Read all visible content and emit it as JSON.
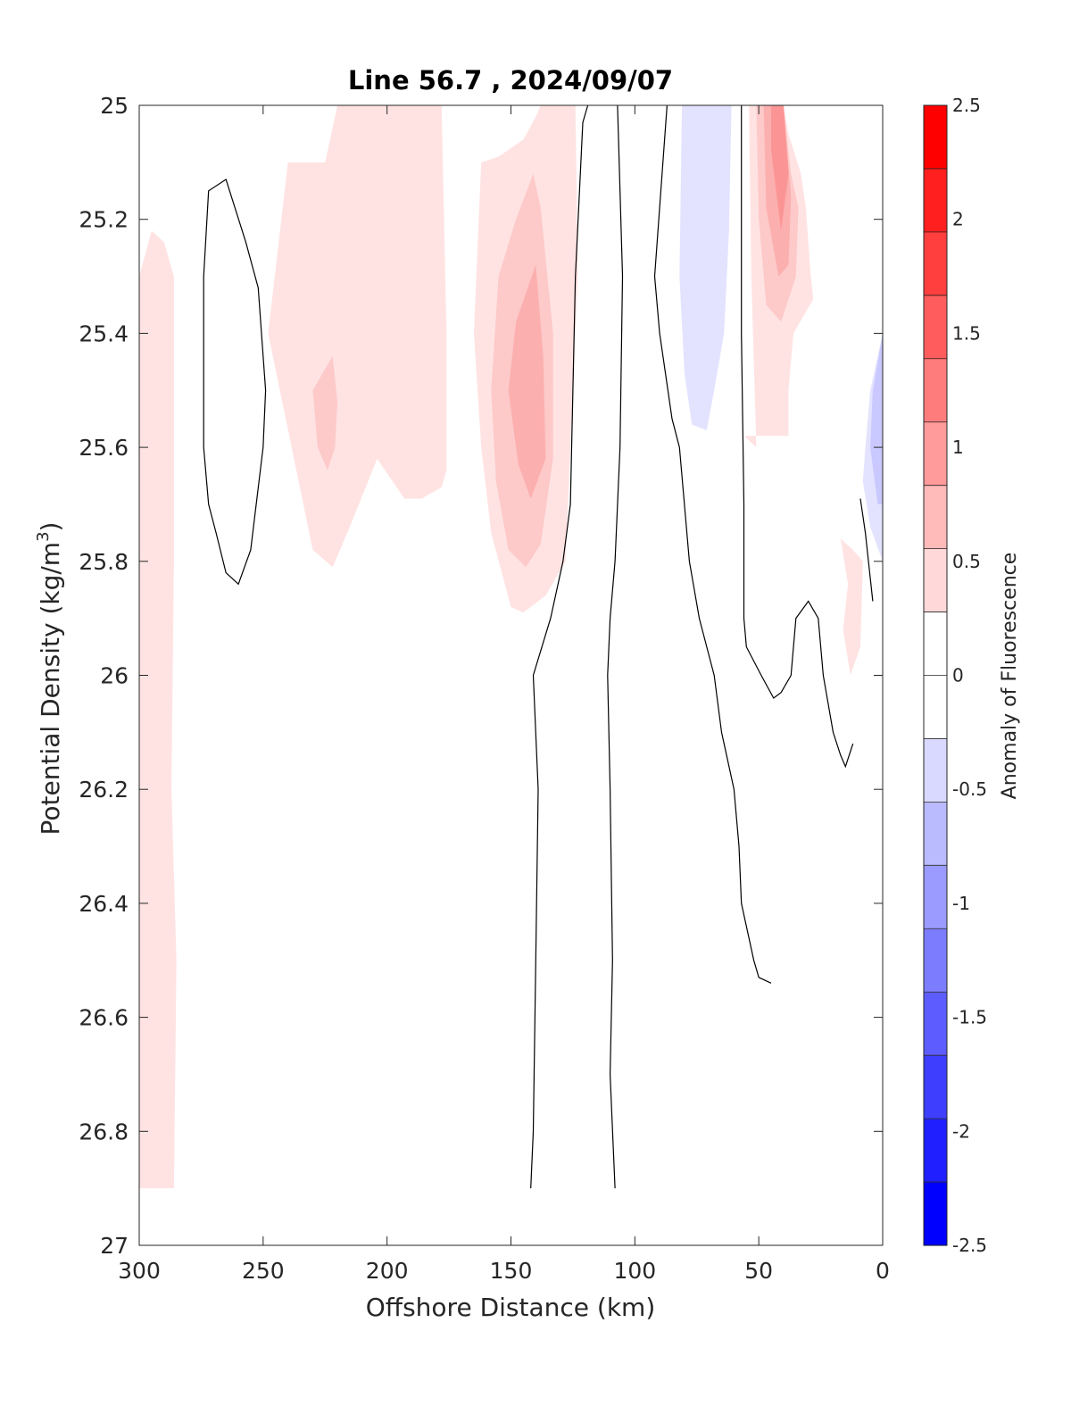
{
  "chart_data": {
    "type": "heatmap",
    "title": "Line 56.7 , 2024/09/07",
    "xlabel": "Offshore Distance (km)",
    "ylabel_main": "Potential Density (kg/m",
    "ylabel_sup": "3",
    "ylabel_tail": ")",
    "x_axis": {
      "lim": [
        0,
        300
      ],
      "reversed": true,
      "ticks": [
        300,
        250,
        200,
        150,
        100,
        50,
        0
      ]
    },
    "y_axis": {
      "lim": [
        25,
        27
      ],
      "reversed": true,
      "ticks": [
        "25",
        "25.2",
        "25.4",
        "25.6",
        "25.8",
        "26",
        "26.2",
        "26.4",
        "26.6",
        "26.8",
        "27"
      ]
    },
    "colorbar": {
      "label": "Anomaly of Fluorescence",
      "lim": [
        -2.5,
        2.5
      ],
      "ticks": [
        "2.5",
        "2",
        "1.5",
        "1",
        "0.5",
        "0",
        "-0.5",
        "-1",
        "-1.5",
        "-2",
        "-2.5"
      ],
      "colors": [
        "#0000ff",
        "#1f1fff",
        "#3e3eff",
        "#5d5dff",
        "#7c7cff",
        "#9b9bff",
        "#babaff",
        "#d9d9ff",
        "#ffffff",
        "#ffffff",
        "#ffd9d9",
        "#ffbaba",
        "#ff9b9b",
        "#ff7c7c",
        "#ff5d5d",
        "#ff3e3e",
        "#ff1f1f",
        "#ff0000"
      ]
    },
    "contour_level_colors": {
      "0.25": "#ffe3e3",
      "0.5": "#fdc9c9",
      "0.75": "#fcafaf",
      "1": "#fb9595",
      "-0.25": "#e3e3ff",
      "-0.5": "#c9c9ff"
    },
    "filled_regions": [
      {
        "level": 0.25,
        "points": [
          [
            300,
            25.3
          ],
          [
            295,
            25.22
          ],
          [
            290,
            25.24
          ],
          [
            286,
            25.3
          ],
          [
            286,
            25.8
          ],
          [
            287,
            26.2
          ],
          [
            285,
            26.5
          ],
          [
            286,
            26.9
          ],
          [
            300,
            26.9
          ]
        ]
      },
      {
        "level": 0.25,
        "points": [
          [
            248,
            25.4
          ],
          [
            240,
            25.1
          ],
          [
            225,
            25.1
          ],
          [
            220,
            25.0
          ],
          [
            178,
            25.0
          ],
          [
            176,
            25.4
          ],
          [
            176,
            25.64
          ],
          [
            178,
            25.67
          ],
          [
            186,
            25.69
          ],
          [
            193,
            25.69
          ],
          [
            204,
            25.62
          ],
          [
            216,
            25.75
          ],
          [
            222,
            25.81
          ],
          [
            230,
            25.78
          ]
        ]
      },
      {
        "level": 0.5,
        "points": [
          [
            230,
            25.5
          ],
          [
            222,
            25.44
          ],
          [
            220,
            25.52
          ],
          [
            221,
            25.6
          ],
          [
            224,
            25.64
          ],
          [
            228,
            25.6
          ]
        ]
      },
      {
        "level": 0.25,
        "points": [
          [
            165,
            25.4
          ],
          [
            162,
            25.1
          ],
          [
            155,
            25.09
          ],
          [
            145,
            25.06
          ],
          [
            140,
            25.02
          ],
          [
            138,
            25.0
          ],
          [
            124,
            25.0
          ],
          [
            123,
            25.3
          ],
          [
            128,
            25.8
          ],
          [
            136,
            25.86
          ],
          [
            145,
            25.89
          ],
          [
            150,
            25.88
          ],
          [
            158,
            25.75
          ],
          [
            162,
            25.6
          ]
        ]
      },
      {
        "level": 0.5,
        "points": [
          [
            158,
            25.5
          ],
          [
            155,
            25.3
          ],
          [
            148,
            25.2
          ],
          [
            141,
            25.12
          ],
          [
            138,
            25.18
          ],
          [
            133,
            25.4
          ],
          [
            133,
            25.62
          ],
          [
            138,
            25.77
          ],
          [
            144,
            25.81
          ],
          [
            151,
            25.78
          ],
          [
            156,
            25.66
          ]
        ]
      },
      {
        "level": 0.75,
        "points": [
          [
            151,
            25.5
          ],
          [
            148,
            25.38
          ],
          [
            140,
            25.28
          ],
          [
            137,
            25.44
          ],
          [
            136,
            25.62
          ],
          [
            142,
            25.69
          ],
          [
            147,
            25.63
          ]
        ]
      },
      {
        "level": -0.25,
        "points": [
          [
            81,
            25.0
          ],
          [
            82,
            25.3
          ],
          [
            80,
            25.47
          ],
          [
            77,
            25.56
          ],
          [
            71,
            25.57
          ],
          [
            68,
            25.5
          ],
          [
            64,
            25.4
          ],
          [
            62,
            25.22
          ],
          [
            61,
            25.0
          ]
        ]
      },
      {
        "level": 0.25,
        "points": [
          [
            54,
            25.0
          ],
          [
            53,
            25.3
          ],
          [
            51,
            25.6
          ],
          [
            56,
            25.58
          ],
          [
            41,
            25.58
          ],
          [
            38,
            25.58
          ],
          [
            38,
            25.5
          ],
          [
            36,
            25.4
          ],
          [
            28,
            25.34
          ],
          [
            29,
            25.3
          ],
          [
            31,
            25.18
          ],
          [
            33,
            25.12
          ],
          [
            38,
            25.05
          ],
          [
            40,
            25.0
          ]
        ]
      },
      {
        "level": 0.5,
        "points": [
          [
            51,
            25.0
          ],
          [
            50,
            25.2
          ],
          [
            47,
            25.35
          ],
          [
            41,
            25.38
          ],
          [
            35,
            25.3
          ],
          [
            34,
            25.18
          ],
          [
            37,
            25.12
          ],
          [
            40,
            25.0
          ]
        ]
      },
      {
        "level": 0.75,
        "points": [
          [
            48,
            25.0
          ],
          [
            47,
            25.18
          ],
          [
            42,
            25.3
          ],
          [
            38,
            25.28
          ],
          [
            37,
            25.16
          ],
          [
            40,
            25.0
          ]
        ]
      },
      {
        "level": 1,
        "points": [
          [
            45,
            25.0
          ],
          [
            45,
            25.08
          ],
          [
            41,
            25.22
          ],
          [
            38,
            25.12
          ],
          [
            40,
            25.0
          ]
        ]
      },
      {
        "level": 0.25,
        "points": [
          [
            17,
            25.76
          ],
          [
            14,
            25.84
          ],
          [
            16,
            25.92
          ],
          [
            13,
            26.0
          ],
          [
            9,
            25.95
          ],
          [
            8,
            25.8
          ],
          [
            12,
            25.78
          ]
        ]
      },
      {
        "level": -0.25,
        "points": [
          [
            0,
            25.4
          ],
          [
            5,
            25.5
          ],
          [
            7,
            25.6
          ],
          [
            8,
            25.66
          ],
          [
            5,
            25.74
          ],
          [
            0,
            25.8
          ]
        ]
      },
      {
        "level": -0.5,
        "points": [
          [
            0,
            25.4
          ],
          [
            4,
            25.5
          ],
          [
            5,
            25.6
          ],
          [
            2,
            25.7
          ],
          [
            0,
            25.7
          ]
        ]
      }
    ],
    "contour_lines": [
      {
        "points": [
          [
            265,
            25.13
          ],
          [
            272,
            25.15
          ],
          [
            274,
            25.3
          ],
          [
            274,
            25.6
          ],
          [
            272,
            25.7
          ],
          [
            269,
            25.75
          ],
          [
            265,
            25.82
          ],
          [
            260,
            25.84
          ],
          [
            255,
            25.78
          ],
          [
            250,
            25.6
          ],
          [
            249,
            25.5
          ],
          [
            252,
            25.32
          ],
          [
            257,
            25.24
          ]
        ],
        "closed": true
      },
      {
        "points": [
          [
            119,
            25.0
          ],
          [
            121,
            25.03
          ],
          [
            124,
            25.3
          ],
          [
            126,
            25.7
          ],
          [
            129,
            25.8
          ],
          [
            134,
            25.9
          ],
          [
            141,
            26.0
          ],
          [
            139,
            26.2
          ],
          [
            140,
            26.5
          ],
          [
            141,
            26.8
          ],
          [
            142,
            26.9
          ]
        ]
      },
      {
        "points": [
          [
            107,
            25.0
          ],
          [
            105,
            25.3
          ],
          [
            106,
            25.6
          ],
          [
            108,
            25.8
          ],
          [
            110,
            25.9
          ],
          [
            111,
            26.0
          ],
          [
            110,
            26.2
          ],
          [
            109,
            26.5
          ],
          [
            110,
            26.7
          ],
          [
            108,
            26.9
          ]
        ]
      },
      {
        "points": [
          [
            87,
            25.0
          ],
          [
            92,
            25.3
          ],
          [
            90,
            25.4
          ],
          [
            85,
            25.55
          ],
          [
            82,
            25.6
          ],
          [
            78,
            25.8
          ],
          [
            74,
            25.9
          ],
          [
            68,
            26.0
          ],
          [
            65,
            26.1
          ],
          [
            60,
            26.2
          ],
          [
            58,
            26.3
          ],
          [
            57,
            26.4
          ],
          [
            52,
            26.5
          ],
          [
            50,
            26.53
          ],
          [
            45,
            26.54
          ]
        ]
      },
      {
        "points": [
          [
            57,
            25.0
          ],
          [
            57,
            25.4
          ],
          [
            56,
            25.7
          ],
          [
            56,
            25.9
          ],
          [
            55,
            25.95
          ],
          [
            49,
            26.0
          ],
          [
            44,
            26.04
          ],
          [
            41,
            26.03
          ],
          [
            37,
            26.0
          ],
          [
            35,
            25.9
          ],
          [
            30,
            25.87
          ],
          [
            26,
            25.9
          ],
          [
            24,
            26.0
          ],
          [
            20,
            26.1
          ],
          [
            17,
            26.14
          ],
          [
            15,
            26.16
          ],
          [
            12,
            26.12
          ]
        ]
      },
      {
        "points": [
          [
            9,
            25.69
          ],
          [
            7,
            25.75
          ],
          [
            4,
            25.87
          ]
        ]
      }
    ]
  }
}
